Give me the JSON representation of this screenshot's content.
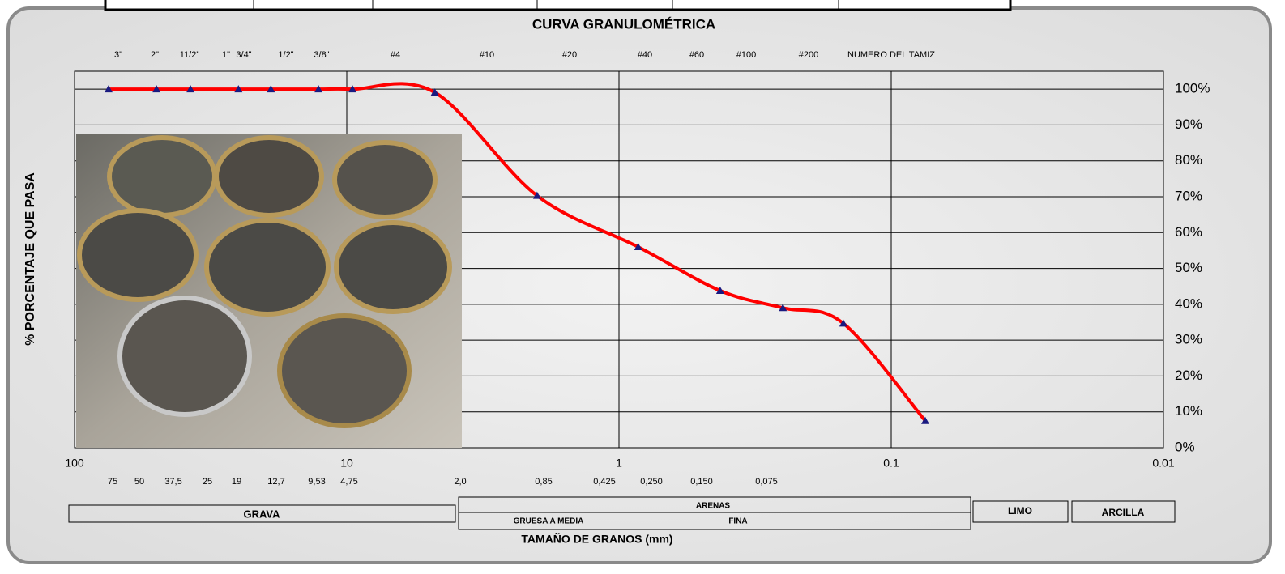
{
  "chart_data": {
    "type": "line",
    "title": "CURVA GRANULOMÉTRICA",
    "x_label": "TAMAÑO DE GRANOS (mm)",
    "y_label": "% PORCENTAJE QUE PASA",
    "x": [
      75,
      50,
      37.5,
      25,
      19,
      12.7,
      9.53,
      4.75,
      2.0,
      0.85,
      0.425,
      0.25,
      0.15,
      0.075
    ],
    "x_labels": [
      "75",
      "50",
      "37,5",
      "25",
      "19",
      "12,7",
      "9,53",
      "4,75",
      "2,0",
      "0,85",
      "0,425",
      "0,250",
      "0,150",
      "0,075"
    ],
    "values": [
      100,
      100,
      100,
      100,
      100,
      100,
      100,
      99.1,
      70.3,
      56.0,
      43.8,
      39.0,
      34.7,
      7.5
    ],
    "sieve_names": [
      "3\"",
      "2\"",
      "11/2\"",
      "1\"",
      "3/4\"",
      "1/2\"",
      "3/8\"",
      "#4",
      "#10",
      "#20",
      "#40",
      "#60",
      "#100",
      "#200",
      "NUMERO DEL TAMIZ"
    ],
    "color": "#ff0000",
    "marker_color": "#1a1a80",
    "xscale": "log",
    "xlim": [
      100,
      0.01
    ],
    "xticks": [
      100,
      10,
      1,
      0.1,
      0.01
    ],
    "ylim": [
      0,
      105
    ],
    "yticks": [
      {
        "value": 0,
        "label": "0%"
      },
      {
        "value": 10,
        "label": "10%"
      },
      {
        "value": 20,
        "label": "20%"
      },
      {
        "value": 30,
        "label": "30%"
      },
      {
        "value": 40,
        "label": "40%"
      },
      {
        "value": 50,
        "label": "50%"
      },
      {
        "value": 60,
        "label": "60%"
      },
      {
        "value": 70,
        "label": "70%"
      },
      {
        "value": 80,
        "label": "80%"
      },
      {
        "value": 90,
        "label": "90%"
      },
      {
        "value": 100,
        "label": "100%"
      }
    ],
    "grid": true
  },
  "classification": {
    "gravel": "GRAVA",
    "sand": "ARENAS",
    "sand_coarse": "GRUESA A MEDIA",
    "sand_fine": "FINA",
    "silt": "LIMO",
    "clay": "ARCILLA"
  }
}
